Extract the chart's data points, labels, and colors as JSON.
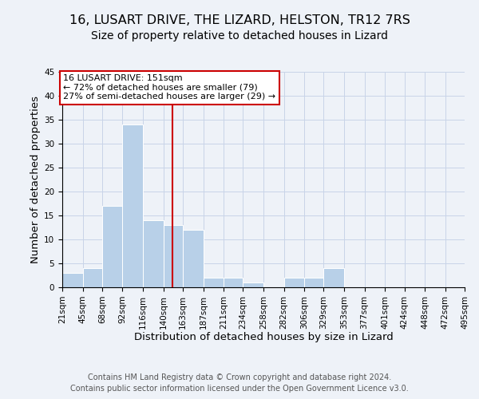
{
  "title": "16, LUSART DRIVE, THE LIZARD, HELSTON, TR12 7RS",
  "subtitle": "Size of property relative to detached houses in Lizard",
  "xlabel": "Distribution of detached houses by size in Lizard",
  "ylabel": "Number of detached properties",
  "bin_edges": [
    21,
    45,
    68,
    92,
    116,
    140,
    163,
    187,
    211,
    234,
    258,
    282,
    306,
    329,
    353,
    377,
    401,
    424,
    448,
    472,
    495
  ],
  "bar_heights": [
    3,
    4,
    17,
    34,
    14,
    13,
    12,
    2,
    2,
    1,
    0,
    2,
    2,
    4,
    0,
    0,
    0,
    0,
    0,
    0
  ],
  "bar_color": "#b8d0e8",
  "bar_edge_color": "#ffffff",
  "grid_color": "#c8d4e8",
  "property_size": 151,
  "vline_color": "#cc0000",
  "annotation_line1": "16 LUSART DRIVE: 151sqm",
  "annotation_line2": "← 72% of detached houses are smaller (79)",
  "annotation_line3": "27% of semi-detached houses are larger (29) →",
  "annotation_box_edgecolor": "#cc0000",
  "annotation_box_facecolor": "#ffffff",
  "ylim": [
    0,
    45
  ],
  "yticks": [
    0,
    5,
    10,
    15,
    20,
    25,
    30,
    35,
    40,
    45
  ],
  "footer_line1": "Contains HM Land Registry data © Crown copyright and database right 2024.",
  "footer_line2": "Contains public sector information licensed under the Open Government Licence v3.0.",
  "title_fontsize": 11.5,
  "subtitle_fontsize": 10,
  "axis_label_fontsize": 9.5,
  "tick_fontsize": 7.5,
  "annotation_fontsize": 8,
  "footer_fontsize": 7,
  "background_color": "#eef2f8"
}
